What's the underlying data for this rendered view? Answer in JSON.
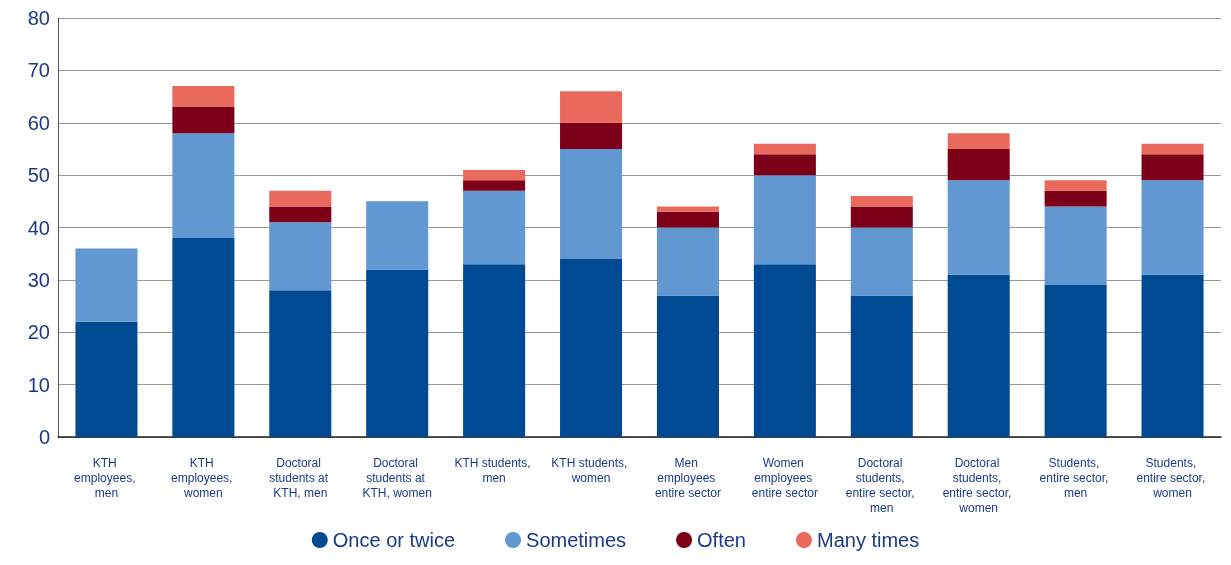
{
  "chart_data": {
    "type": "bar",
    "stacked": true,
    "categories": [
      "KTH employees, men",
      "KTH employees, women",
      "Doctoral students at KTH, men",
      "Doctoral students at KTH, women",
      "KTH students, men",
      "KTH students, women",
      "Men employees entire sector",
      "Women employees entire sector",
      "Doctoral students, entire sector, men",
      "Doctoral students, entire sector, women",
      "Students, entire sector, men",
      "Students, entire sector, women"
    ],
    "series": [
      {
        "name": "Once or twice",
        "color": "#004a94",
        "values": [
          22,
          38,
          28,
          32,
          33,
          34,
          27,
          33,
          27,
          31,
          29,
          31
        ]
      },
      {
        "name": "Sometimes",
        "color": "#6198d1",
        "values": [
          14,
          20,
          13,
          13,
          14,
          21,
          13,
          17,
          13,
          18,
          15,
          18
        ]
      },
      {
        "name": "Often",
        "color": "#7d0019",
        "values": [
          null,
          5,
          3,
          null,
          2,
          5,
          3,
          4,
          4,
          6,
          3,
          5
        ]
      },
      {
        "name": "Many times",
        "color": "#e96a5c",
        "values": [
          null,
          4,
          3,
          null,
          2,
          6,
          1,
          2,
          2,
          3,
          2,
          2
        ]
      }
    ],
    "ylim": [
      0,
      80
    ],
    "yticks": [
      0,
      10,
      20,
      30,
      40,
      50,
      60,
      70,
      80
    ],
    "grid": "y",
    "legend": "bottom"
  }
}
